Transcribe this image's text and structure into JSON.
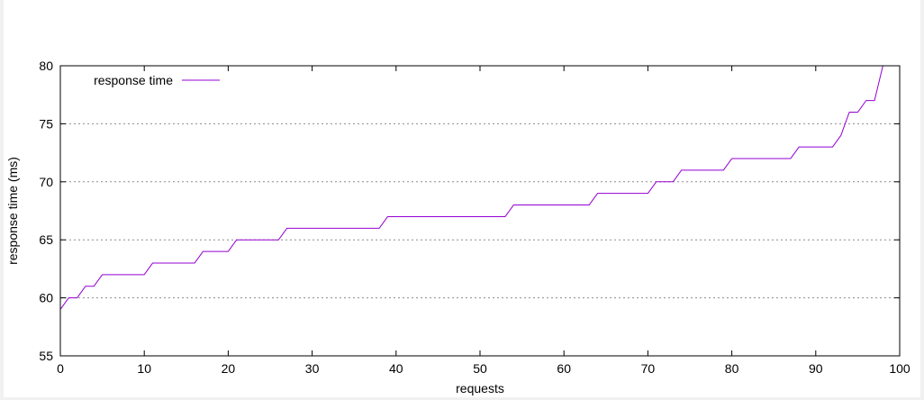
{
  "chart_data": {
    "type": "line",
    "xlabel": "requests",
    "ylabel": "response time (ms)",
    "xlim": [
      0,
      100
    ],
    "ylim": [
      55,
      80
    ],
    "xticks": [
      0,
      10,
      20,
      30,
      40,
      50,
      60,
      70,
      80,
      90,
      100
    ],
    "yticks": [
      55,
      60,
      65,
      70,
      75,
      80
    ],
    "grid": "horizontal-dotted",
    "legend_position": "top-left",
    "series": [
      {
        "name": "response time",
        "color": "#9400d3",
        "x": [
          0,
          1,
          2,
          3,
          4,
          5,
          6,
          7,
          8,
          9,
          10,
          11,
          12,
          13,
          14,
          15,
          16,
          17,
          18,
          19,
          20,
          21,
          22,
          23,
          24,
          25,
          26,
          27,
          28,
          29,
          30,
          31,
          32,
          33,
          34,
          35,
          36,
          37,
          38,
          39,
          40,
          41,
          42,
          43,
          44,
          45,
          46,
          47,
          48,
          49,
          50,
          51,
          52,
          53,
          54,
          55,
          56,
          57,
          58,
          59,
          60,
          61,
          62,
          63,
          64,
          65,
          66,
          67,
          68,
          69,
          70,
          71,
          72,
          73,
          74,
          75,
          76,
          77,
          78,
          79,
          80,
          81,
          82,
          83,
          84,
          85,
          86,
          87,
          88,
          89,
          90,
          91,
          92,
          93,
          94,
          95,
          96,
          97,
          98
        ],
        "values": [
          59,
          60,
          60,
          61,
          61,
          62,
          62,
          62,
          62,
          62,
          62,
          63,
          63,
          63,
          63,
          63,
          63,
          64,
          64,
          64,
          64,
          65,
          65,
          65,
          65,
          65,
          65,
          66,
          66,
          66,
          66,
          66,
          66,
          66,
          66,
          66,
          66,
          66,
          66,
          67,
          67,
          67,
          67,
          67,
          67,
          67,
          67,
          67,
          67,
          67,
          67,
          67,
          67,
          67,
          68,
          68,
          68,
          68,
          68,
          68,
          68,
          68,
          68,
          68,
          69,
          69,
          69,
          69,
          69,
          69,
          69,
          70,
          70,
          70,
          71,
          71,
          71,
          71,
          71,
          71,
          72,
          72,
          72,
          72,
          72,
          72,
          72,
          72,
          73,
          73,
          73,
          73,
          73,
          74,
          76,
          76,
          77,
          77,
          80
        ]
      }
    ]
  }
}
